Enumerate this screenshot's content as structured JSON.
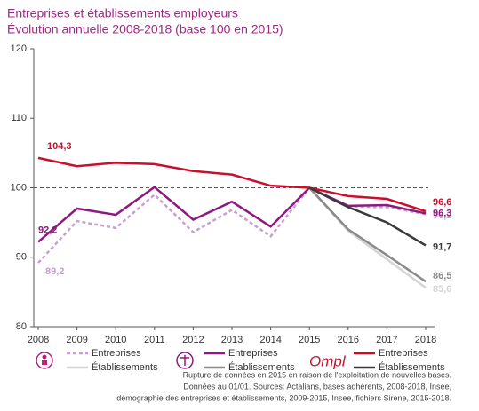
{
  "chart_data": {
    "type": "line",
    "title": "Entreprises et établissements employeurs",
    "subtitle": "Évolution annuelle 2008-2018 (base 100 en 2015)",
    "categories": [
      "2008",
      "2009",
      "2010",
      "2011",
      "2012",
      "2013",
      "2014",
      "2015",
      "2016",
      "2017",
      "2018"
    ],
    "ylim": [
      80,
      120
    ],
    "yticks": [
      80,
      90,
      100,
      110,
      120
    ],
    "reference_value": 100,
    "series": [
      {
        "name": "Entreprises",
        "group": 0,
        "color": "#c5a0cf",
        "dash": true,
        "values": [
          89.2,
          95.2,
          94.2,
          99,
          93.6,
          96.8,
          93,
          100,
          97.3,
          97.2,
          96.2
        ],
        "value_labels": [
          "89,2",
          null,
          null,
          null,
          null,
          null,
          null,
          null,
          null,
          null,
          "96,2"
        ]
      },
      {
        "name": "Établissements",
        "group": 0,
        "color": "#d4d4d4",
        "dash": false,
        "values": [
          null,
          null,
          null,
          null,
          null,
          null,
          null,
          100,
          93.8,
          89.7,
          85.6
        ],
        "value_labels": [
          null,
          null,
          null,
          null,
          null,
          null,
          null,
          null,
          null,
          null,
          "85,6"
        ]
      },
      {
        "name": "Entreprises",
        "group": 1,
        "color": "#8e1a7e",
        "dash": false,
        "values": [
          92.2,
          97,
          96.1,
          100.1,
          95.4,
          98,
          94.4,
          100,
          97.4,
          97.5,
          96.3
        ],
        "value_labels": [
          "92,2",
          null,
          null,
          null,
          null,
          null,
          null,
          null,
          null,
          null,
          "96,3"
        ]
      },
      {
        "name": "Établissements",
        "group": 1,
        "color": "#8a8a8a",
        "dash": false,
        "values": [
          null,
          null,
          null,
          null,
          null,
          null,
          null,
          100,
          94,
          90.3,
          86.5
        ],
        "value_labels": [
          null,
          null,
          null,
          null,
          null,
          null,
          null,
          null,
          null,
          null,
          "86,5"
        ]
      },
      {
        "name": "Entreprises",
        "group": 2,
        "color": "#c8102e",
        "dash": false,
        "values": [
          104.3,
          103.1,
          103.6,
          103.4,
          102.4,
          101.9,
          100.3,
          100,
          98.8,
          98.4,
          96.6
        ],
        "value_labels": [
          "104,3",
          null,
          null,
          null,
          null,
          null,
          null,
          null,
          null,
          null,
          "96,6"
        ]
      },
      {
        "name": "Établissements",
        "group": 2,
        "color": "#3a3a3a",
        "dash": false,
        "values": [
          null,
          null,
          null,
          null,
          null,
          null,
          null,
          100,
          97.2,
          95,
          91.7
        ],
        "value_labels": [
          null,
          null,
          null,
          null,
          null,
          null,
          null,
          null,
          null,
          null,
          "91,7"
        ]
      }
    ],
    "logo_text": "Ompl",
    "notes": [
      "Rupture de données en 2015 en raison de l'exploitation de nouvelles bases.",
      "Données au 01/01. Sources: Actalians, bases adhérents, 2008-2018, Insee,",
      "démographie des entreprises et établissements, 2009-2015, Insee, fichiers Sirene, 2015-2018."
    ]
  }
}
